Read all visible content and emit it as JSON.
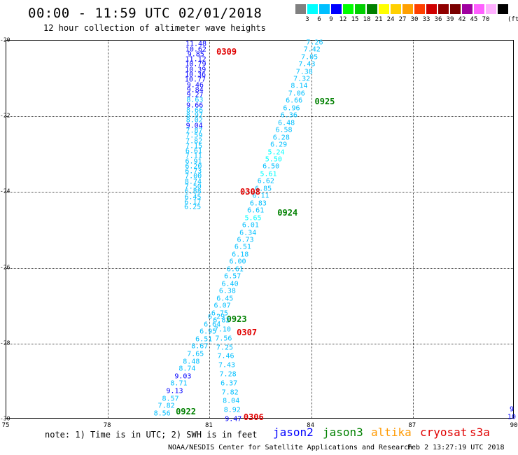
{
  "header": {
    "title": "00:00 - 11:59 UTC 02/01/2018",
    "subtitle": "12 hour collection of altimeter wave heights"
  },
  "legend": {
    "colors": [
      "#808080",
      "#00ffff",
      "#00bfff",
      "#0000ff",
      "#00ff00",
      "#00d000",
      "#008000",
      "#ffff00",
      "#ffd000",
      "#ffa000",
      "#ff4000",
      "#d00000",
      "#900000",
      "#7a0000",
      "#a000a0",
      "#ff60ff",
      "#ffb0ff",
      "#000000"
    ],
    "ticks": [
      "3",
      "6",
      "9",
      "12",
      "15",
      "18",
      "21",
      "24",
      "27",
      "30",
      "33",
      "36",
      "39",
      "42",
      "45",
      "70"
    ],
    "unit": "(ft)"
  },
  "map": {
    "lon_labels": [
      "75",
      "78",
      "81",
      "84",
      "87",
      "90"
    ],
    "lat_labels": [
      "-20",
      "-22",
      "-24",
      "-26",
      "-28",
      "-30"
    ],
    "lon_range": [
      75,
      90
    ],
    "lat_range": [
      -20,
      -30
    ]
  },
  "tracks": [
    {
      "pass_label": "0309",
      "pass_color": "#e00000",
      "pass_lon": 81.5,
      "pass_lat": -20.3,
      "lon_start": 80.6,
      "lat_start": -20.1,
      "lon_end": 80.5,
      "lat_end": -24.4,
      "values": [
        {
          "v": "11.48",
          "c": "#0000ff"
        },
        {
          "v": "10.62",
          "c": "#0000ff"
        },
        {
          "v": "9.85",
          "c": "#0000ff"
        },
        {
          "v": "11.12",
          "c": "#0000ff"
        },
        {
          "v": "10.79",
          "c": "#0000ff"
        },
        {
          "v": "10.39",
          "c": "#0000ff"
        },
        {
          "v": "10.36",
          "c": "#0000ff"
        },
        {
          "v": "10.77",
          "c": "#0000ff"
        },
        {
          "v": "9.46",
          "c": "#0000ff"
        },
        {
          "v": "9.84",
          "c": "#0000ff"
        },
        {
          "v": "9.27",
          "c": "#0000ff"
        },
        {
          "v": "8.63",
          "c": "#00bfff"
        },
        {
          "v": "9.66",
          "c": "#0000ff"
        },
        {
          "v": "8.66",
          "c": "#00bfff"
        },
        {
          "v": "8.97",
          "c": "#00bfff"
        },
        {
          "v": "8.02",
          "c": "#00bfff"
        },
        {
          "v": "9.04",
          "c": "#0000ff"
        },
        {
          "v": "7.87",
          "c": "#00bfff"
        },
        {
          "v": "7.59",
          "c": "#00bfff"
        },
        {
          "v": "7.82",
          "c": "#00bfff"
        },
        {
          "v": "7.15",
          "c": "#00bfff"
        },
        {
          "v": "6.61",
          "c": "#00bfff"
        },
        {
          "v": "7.11",
          "c": "#00bfff"
        },
        {
          "v": "6.91",
          "c": "#00bfff"
        },
        {
          "v": "6.20",
          "c": "#00bfff"
        },
        {
          "v": "6.73",
          "c": "#00bfff"
        },
        {
          "v": "7.00",
          "c": "#00bfff"
        },
        {
          "v": "8.74",
          "c": "#00bfff"
        },
        {
          "v": "7.50",
          "c": "#00bfff"
        },
        {
          "v": "6.88",
          "c": "#00bfff"
        },
        {
          "v": "6.45",
          "c": "#00bfff"
        },
        {
          "v": "6.17",
          "c": "#00bfff"
        },
        {
          "v": "6.25",
          "c": "#00bfff"
        }
      ]
    },
    {
      "pass_label": "0925",
      "pass_color": "#008000",
      "pass_lon": 84.4,
      "pass_lat": -21.6,
      "lon_start": 84.1,
      "lat_start": -20.05,
      "lon_end": 81.3,
      "lat_end": -27.2,
      "values": [
        {
          "v": "7.26",
          "c": "#00bfff"
        },
        {
          "v": "7.42",
          "c": "#00bfff"
        },
        {
          "v": "7.05",
          "c": "#00bfff"
        },
        {
          "v": "7.43",
          "c": "#00bfff"
        },
        {
          "v": "7.38",
          "c": "#00bfff"
        },
        {
          "v": "7.32",
          "c": "#00bfff"
        },
        {
          "v": "8.14",
          "c": "#00bfff"
        },
        {
          "v": "7.06",
          "c": "#00bfff"
        },
        {
          "v": "6.66",
          "c": "#00bfff"
        },
        {
          "v": "6.96",
          "c": "#00bfff"
        },
        {
          "v": "6.36",
          "c": "#00bfff"
        },
        {
          "v": "6.48",
          "c": "#00bfff"
        },
        {
          "v": "6.58",
          "c": "#00bfff"
        },
        {
          "v": "6.28",
          "c": "#00bfff"
        },
        {
          "v": "6.29",
          "c": "#00bfff"
        },
        {
          "v": "5.24",
          "c": "#00ffff"
        },
        {
          "v": "5.50",
          "c": "#00ffff"
        },
        {
          "v": "6.50",
          "c": "#00bfff"
        },
        {
          "v": "5.61",
          "c": "#00ffff"
        },
        {
          "v": "6.62",
          "c": "#00bfff"
        },
        {
          "v": "6.85",
          "c": "#00bfff"
        },
        {
          "v": "6.11",
          "c": "#00bfff"
        },
        {
          "v": "6.83",
          "c": "#00bfff"
        },
        {
          "v": "6.61",
          "c": "#00bfff"
        },
        {
          "v": "5.65",
          "c": "#00ffff"
        },
        {
          "v": "6.01",
          "c": "#00bfff"
        },
        {
          "v": "6.34",
          "c": "#00bfff"
        },
        {
          "v": "6.73",
          "c": "#00bfff"
        },
        {
          "v": "6.51",
          "c": "#00bfff"
        },
        {
          "v": "6.18",
          "c": "#00bfff"
        },
        {
          "v": "6.00",
          "c": "#00bfff"
        },
        {
          "v": "6.61",
          "c": "#00bfff"
        },
        {
          "v": "6.57",
          "c": "#00bfff"
        },
        {
          "v": "6.40",
          "c": "#00bfff"
        },
        {
          "v": "6.38",
          "c": "#00bfff"
        },
        {
          "v": "6.45",
          "c": "#00bfff"
        },
        {
          "v": "6.07",
          "c": "#00bfff"
        },
        {
          "v": "6.75",
          "c": "#00bfff"
        }
      ]
    },
    {
      "pass_label": "0308",
      "pass_color": "#e00000",
      "pass_lon": 82.2,
      "pass_lat": -24.0,
      "lon_start": 0,
      "lat_start": 0,
      "lon_end": 0,
      "lat_end": 0,
      "values": []
    },
    {
      "pass_label": "0924",
      "pass_color": "#008000",
      "pass_lon": 83.3,
      "pass_lat": -24.55,
      "lon_start": 0,
      "lat_start": 0,
      "lon_end": 0,
      "lat_end": 0,
      "values": []
    },
    {
      "pass_label": "0923",
      "pass_color": "#008000",
      "pass_lon": 81.8,
      "pass_lat": -27.35,
      "lon_start": 81.2,
      "lat_start": -27.3,
      "lon_end": 79.6,
      "lat_end": -29.85,
      "values": [
        {
          "v": "6.29",
          "c": "#00bfff"
        },
        {
          "v": "6.64",
          "c": "#00bfff"
        },
        {
          "v": "6.95",
          "c": "#00bfff"
        },
        {
          "v": "6.51",
          "c": "#00bfff"
        },
        {
          "v": "8.67",
          "c": "#00bfff"
        },
        {
          "v": "7.65",
          "c": "#00bfff"
        },
        {
          "v": "8.48",
          "c": "#00bfff"
        },
        {
          "v": "8.74",
          "c": "#00bfff"
        },
        {
          "v": "9.03",
          "c": "#0000ff"
        },
        {
          "v": "8.71",
          "c": "#00bfff"
        },
        {
          "v": "9.13",
          "c": "#0000ff"
        },
        {
          "v": "8.57",
          "c": "#00bfff"
        },
        {
          "v": "7.82",
          "c": "#00bfff"
        },
        {
          "v": "8.56",
          "c": "#00bfff"
        }
      ]
    },
    {
      "pass_label": "0307",
      "pass_color": "#e00000",
      "pass_lon": 82.1,
      "pass_lat": -27.7,
      "lon_start": 81.35,
      "lat_start": -27.4,
      "lon_end": 81.7,
      "lat_end": -30.0,
      "values": [
        {
          "v": "6.82",
          "c": "#00bfff"
        },
        {
          "v": "7.10",
          "c": "#00bfff"
        },
        {
          "v": "7.56",
          "c": "#00bfff"
        },
        {
          "v": "7.25",
          "c": "#00bfff"
        },
        {
          "v": "7.46",
          "c": "#00bfff"
        },
        {
          "v": "7.43",
          "c": "#00bfff"
        },
        {
          "v": "7.28",
          "c": "#00bfff"
        },
        {
          "v": "6.37",
          "c": "#00bfff"
        },
        {
          "v": "7.82",
          "c": "#00bfff"
        },
        {
          "v": "8.04",
          "c": "#00bfff"
        },
        {
          "v": "8.92",
          "c": "#00bfff"
        },
        {
          "v": "9.47",
          "c": "#0000ff"
        }
      ]
    },
    {
      "pass_label": "0922",
      "pass_color": "#008000",
      "pass_lon": 80.3,
      "pass_lat": -29.8,
      "lon_start": 0,
      "lat_start": 0,
      "lon_end": 0,
      "lat_end": 0,
      "values": []
    },
    {
      "pass_label": "0306",
      "pass_color": "#e00000",
      "pass_lon": 82.3,
      "pass_lat": -29.95,
      "lon_start": 0,
      "lat_start": 0,
      "lon_end": 0,
      "lat_end": 0,
      "values": []
    }
  ],
  "edge_values": [
    {
      "v": "9",
      "c": "#0000ff",
      "lon": 90.1,
      "lat": -29.75
    },
    {
      "v": "10",
      "c": "#0000ff",
      "lon": 90.05,
      "lat": -29.95
    }
  ],
  "footer": {
    "note": "note: 1) Time is in UTC; 2) SWH is in feet",
    "satellites": [
      {
        "name": "jason2",
        "color": "#0000ff"
      },
      {
        "name": "jason3",
        "color": "#008000"
      },
      {
        "name": "altika",
        "color": "#ff9900"
      },
      {
        "name": "cryosat",
        "color": "#e00000"
      },
      {
        "name": "s3a",
        "color": "#e00000"
      }
    ],
    "credit": "NOAA/NESDIS Center for Satellite Applications and Research",
    "timestamp": "Feb  2 13:27:19 UTC 2018"
  }
}
